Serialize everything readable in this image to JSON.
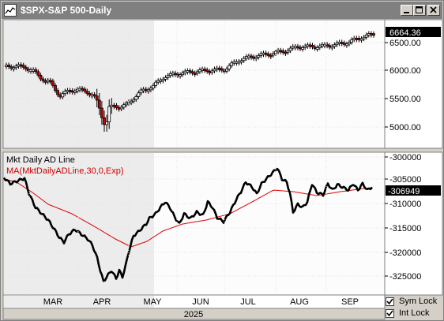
{
  "window": {
    "title": "$SPX-S&P 500-Daily"
  },
  "price_panel": {
    "last_value": "6664.36",
    "y_ticks": [
      "6500.00",
      "6000.00",
      "5500.00",
      "5000.00"
    ]
  },
  "ad_panel": {
    "label": "Mkt Daily AD Line",
    "ma_label": "MA(MktDailyADLine,30,0,Exp)",
    "last_value": "-306949",
    "y_ticks": [
      "-300000",
      "-305000",
      "-310000",
      "-315000",
      "-320000",
      "-325000"
    ]
  },
  "x_axis": {
    "months": [
      "MAR",
      "APR",
      "MAY",
      "JUN",
      "JUL",
      "AUG",
      "SEP"
    ],
    "year": "2025"
  },
  "controls": {
    "sym_lock": "Sym Lock",
    "int_lock": "Int Lock"
  },
  "colors": {
    "price_band": "#ebebeb",
    "down": "#cc0000",
    "ma": "#dd0000",
    "ad": "#000000"
  }
}
